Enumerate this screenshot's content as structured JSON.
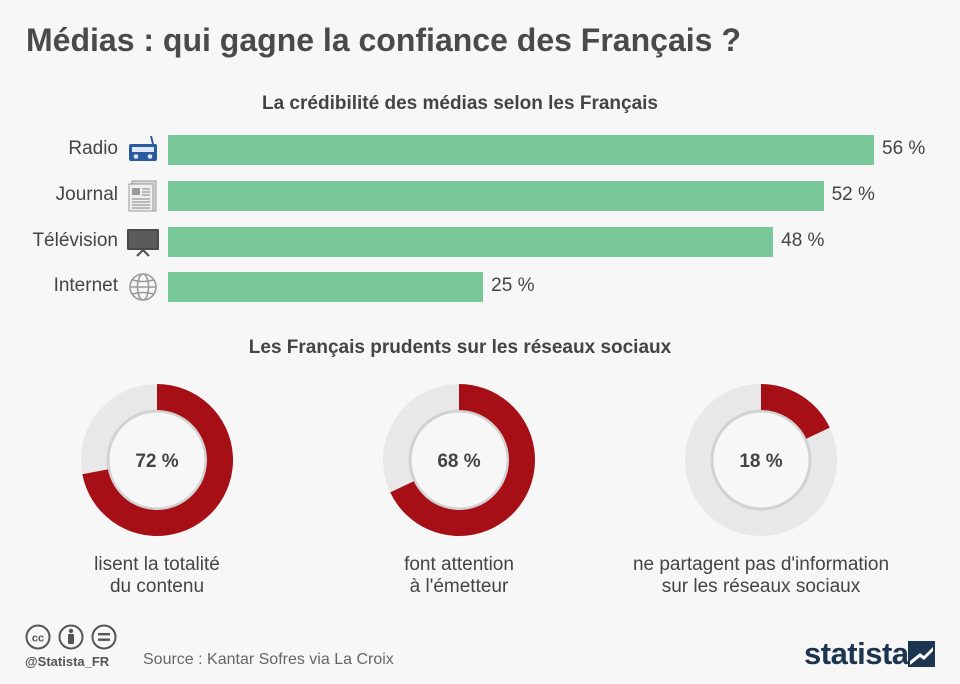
{
  "header": {
    "title": "Médias : qui gagne la confiance des Français ?"
  },
  "chart_data": [
    {
      "type": "bar",
      "orientation": "horizontal",
      "title": "La crédibilité des médias selon les Français",
      "categories": [
        "Radio",
        "Journal",
        "Télévision",
        "Internet"
      ],
      "values": [
        56,
        52,
        48,
        25
      ],
      "value_labels": [
        "56 %",
        "52 %",
        "48 %",
        "25 %"
      ],
      "icons": [
        "radio-icon",
        "newspaper-icon",
        "television-icon",
        "globe-icon"
      ],
      "xlim": [
        0,
        56
      ],
      "color": "#79c89a",
      "grid": false
    },
    {
      "type": "pie",
      "variant": "donut-set",
      "title": "Les Français prudents sur les réseaux sociaux",
      "items": [
        {
          "value": 72,
          "label": "72 %",
          "caption": [
            "lisent la totalité",
            "du contenu"
          ]
        },
        {
          "value": 68,
          "label": "68 %",
          "caption": [
            "font attention",
            "à l'émetteur"
          ]
        },
        {
          "value": 18,
          "label": "18 %",
          "caption": [
            "ne partagent pas d'information",
            "sur les réseaux sociaux"
          ]
        }
      ],
      "color": "#a50f15",
      "track_color": "#e8e8e8"
    }
  ],
  "footer": {
    "handle": "@Statista_FR",
    "source": "Source : Kantar Sofres via La Croix",
    "brand": "statista",
    "license_icons": [
      "cc-icon",
      "attribution-icon",
      "no-derivatives-icon"
    ]
  }
}
